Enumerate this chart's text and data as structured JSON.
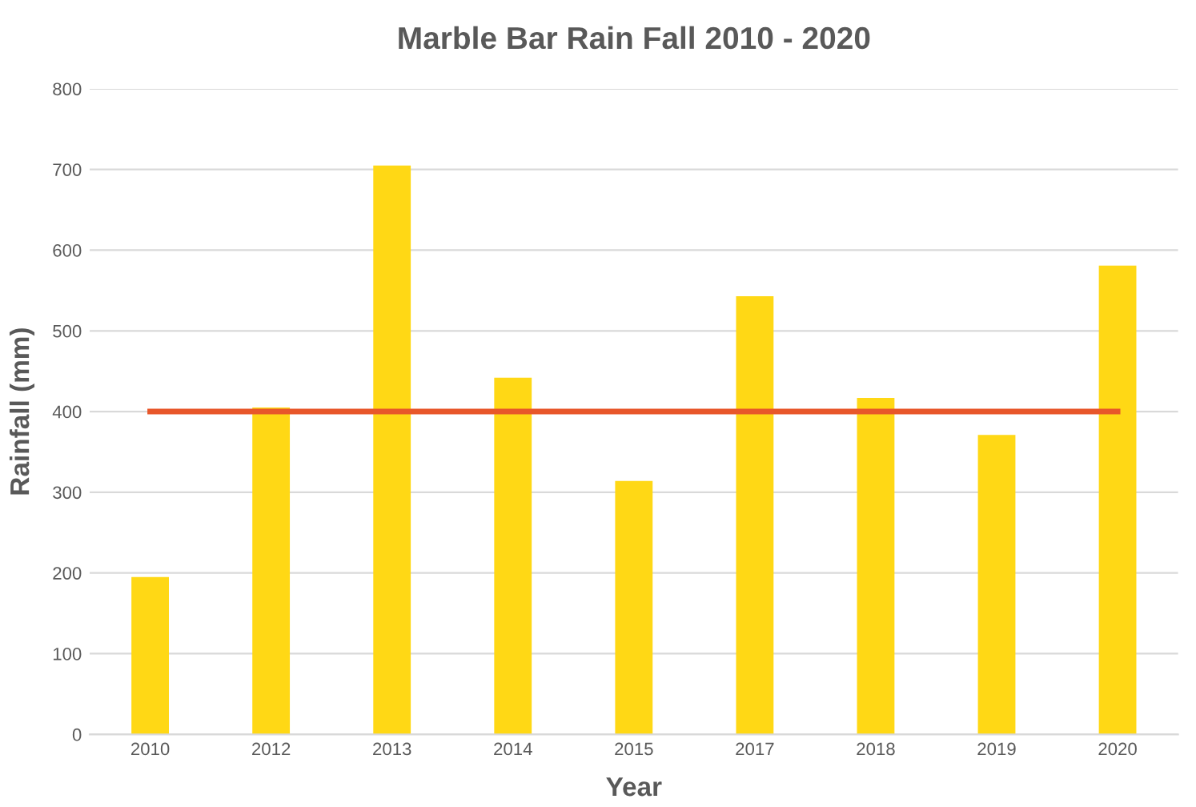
{
  "chart_data": {
    "type": "bar",
    "title": "Marble Bar Rain Fall 2010 - 2020",
    "xlabel": "Year",
    "ylabel": "Rainfall (mm)",
    "categories": [
      "2010",
      "2012",
      "2013",
      "2014",
      "2015",
      "2017",
      "2018",
      "2019",
      "2020"
    ],
    "series": [
      {
        "color": "#ffd815",
        "values": [
          195,
          405,
          705,
          442,
          314,
          543,
          417,
          371,
          581
        ]
      },
      {
        "type": "line",
        "color": "#e8572a",
        "values": [
          400,
          400,
          400,
          400,
          400,
          400,
          400,
          400,
          400
        ]
      }
    ],
    "ylim": [
      0,
      800
    ],
    "yticks": [
      0,
      100,
      200,
      300,
      400,
      500,
      600,
      700,
      800
    ],
    "grid": "y"
  }
}
